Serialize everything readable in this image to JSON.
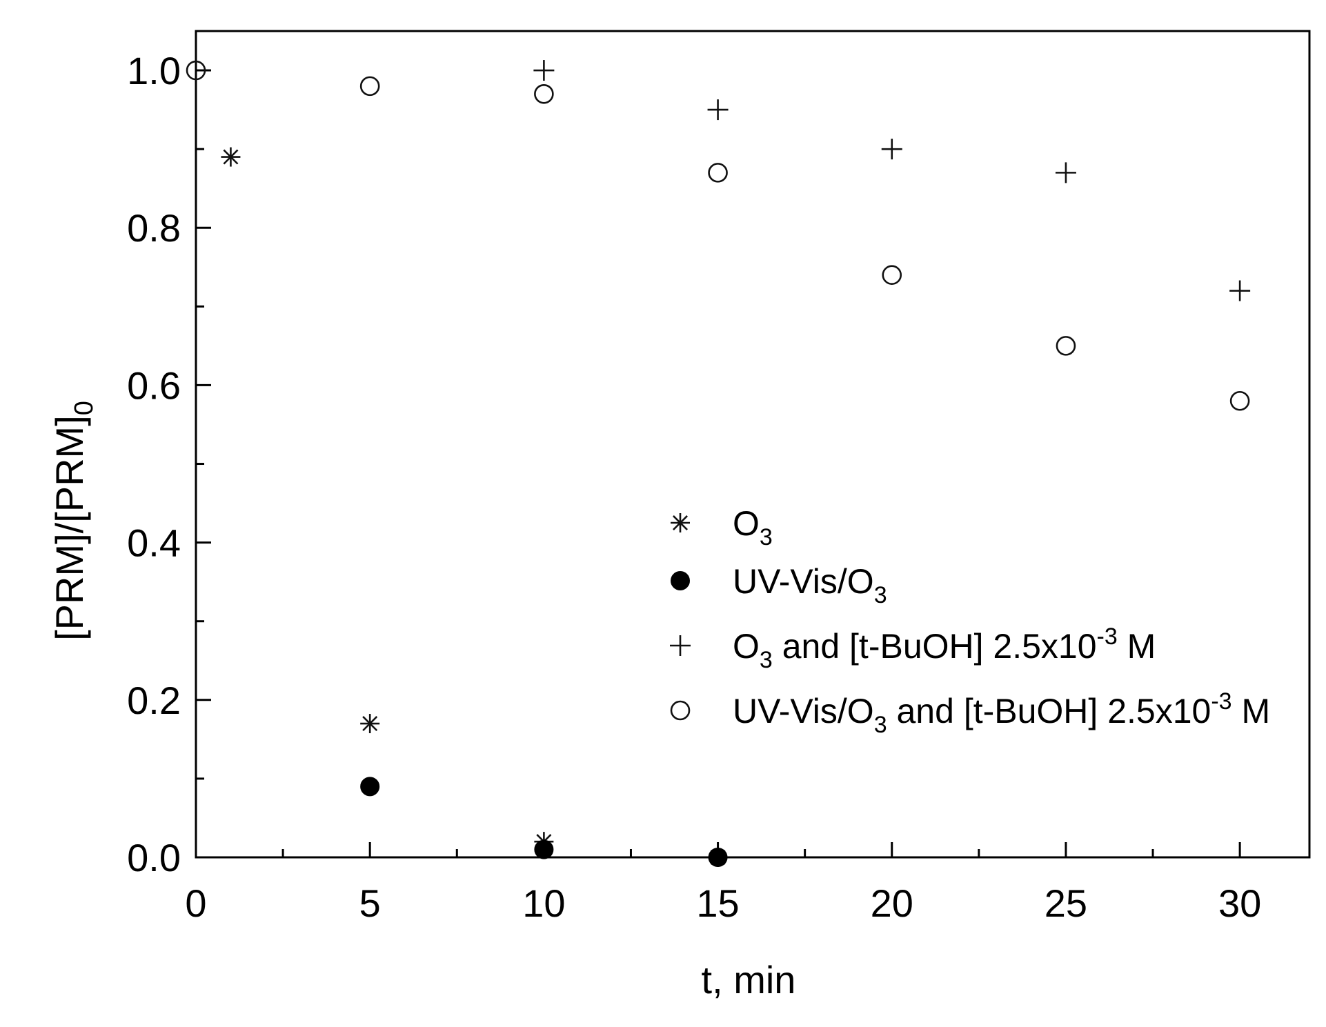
{
  "chart_data": {
    "type": "scatter",
    "title": "",
    "xlabel": "t, min",
    "ylabel": "[PRM]/[PRM]0",
    "ylabel_main": "[PRM]/[PRM]",
    "ylabel_sub": "0",
    "xlim": [
      0,
      32
    ],
    "ylim": [
      0,
      1.05
    ],
    "x_ticks": [
      0,
      5,
      10,
      15,
      20,
      25,
      30
    ],
    "x_tick_labels": [
      "0",
      "5",
      "10",
      "15",
      "20",
      "25",
      "30"
    ],
    "x_minor_ticks": [
      2.5,
      7.5,
      12.5,
      17.5,
      22.5,
      27.5
    ],
    "y_ticks": [
      0,
      0.2,
      0.4,
      0.6,
      0.8,
      1.0
    ],
    "y_tick_labels": [
      "0.0",
      "0.2",
      "0.4",
      "0.6",
      "0.8",
      "1.0"
    ],
    "y_minor_ticks": [
      0.1,
      0.3,
      0.5,
      0.7,
      0.9
    ],
    "grid": false,
    "legend_position": "center-right",
    "series": [
      {
        "name": "O3",
        "legend": {
          "pre": "O",
          "sub": "3",
          "post": "",
          "sup": "",
          "tail": ""
        },
        "marker": "asterisk",
        "x": [
          1,
          5,
          10,
          15
        ],
        "y": [
          0.89,
          0.17,
          0.02,
          0.0
        ]
      },
      {
        "name": "UV-Vis/O3",
        "legend": {
          "pre": "UV-Vis/O",
          "sub": "3",
          "post": "",
          "sup": "",
          "tail": ""
        },
        "marker": "filled-circle",
        "x": [
          5,
          10,
          15
        ],
        "y": [
          0.09,
          0.01,
          0.0
        ]
      },
      {
        "name": "O3 and [t-BuOH] 2.5x10-3 M",
        "legend": {
          "pre": "O",
          "sub": "3",
          "post": " and [t-BuOH] 2.5x10",
          "sup": "-3",
          "tail": " M"
        },
        "marker": "plus",
        "x": [
          10,
          15,
          20,
          25,
          30
        ],
        "y": [
          1.0,
          0.95,
          0.9,
          0.87,
          0.72
        ]
      },
      {
        "name": "UV-Vis/O3 and [t-BuOH] 2.5x10-3 M",
        "legend": {
          "pre": "UV-Vis/O",
          "sub": "3",
          "post": " and [t-BuOH] 2.5x10",
          "sup": "-3",
          "tail": " M"
        },
        "marker": "open-circle",
        "x": [
          0,
          5,
          10,
          15,
          20,
          25,
          30
        ],
        "y": [
          1.0,
          0.98,
          0.97,
          0.87,
          0.74,
          0.65,
          0.58
        ]
      }
    ]
  }
}
